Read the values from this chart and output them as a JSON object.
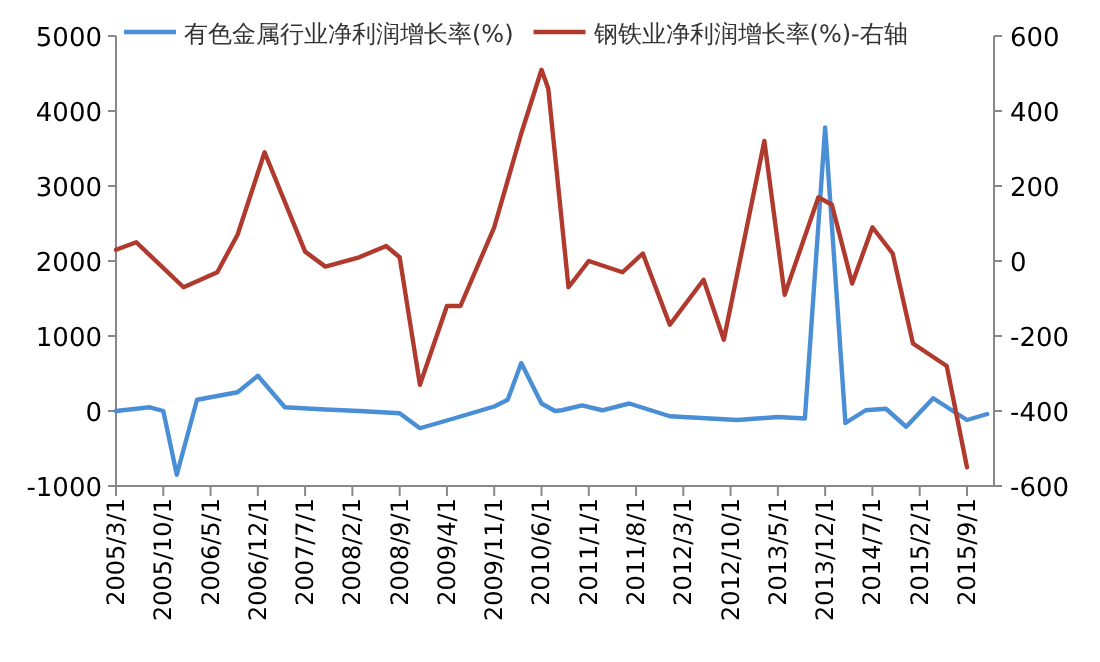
{
  "chart_data": {
    "type": "line",
    "legend": "top",
    "marker": "none",
    "line_style": "solid",
    "xlim": [
      "2005-03",
      "2016-01"
    ],
    "xticks": [
      {
        "value": "2005-03-01",
        "label": "2005/3/1"
      },
      {
        "value": "2005-10-01",
        "label": "2005/10/1"
      },
      {
        "value": "2006-05-01",
        "label": "2006/5/1"
      },
      {
        "value": "2006-12-01",
        "label": "2006/12/1"
      },
      {
        "value": "2007-07-01",
        "label": "2007/7/1"
      },
      {
        "value": "2008-02-01",
        "label": "2008/2/1"
      },
      {
        "value": "2008-09-01",
        "label": "2008/9/1"
      },
      {
        "value": "2009-04-01",
        "label": "2009/4/1"
      },
      {
        "value": "2009-11-01",
        "label": "2009/11/1"
      },
      {
        "value": "2010-06-01",
        "label": "2010/6/1"
      },
      {
        "value": "2011-01-01",
        "label": "2011/1/1"
      },
      {
        "value": "2011-08-01",
        "label": "2011/8/1"
      },
      {
        "value": "2012-03-01",
        "label": "2012/3/1"
      },
      {
        "value": "2012-10-01",
        "label": "2012/10/1"
      },
      {
        "value": "2013-05-01",
        "label": "2013/5/1"
      },
      {
        "value": "2013-12-01",
        "label": "2013/12/1"
      },
      {
        "value": "2014-07-01",
        "label": "2014/7/1"
      },
      {
        "value": "2015-02-01",
        "label": "2015/2/1"
      },
      {
        "value": "2015-09-01",
        "label": "2015/9/1"
      }
    ],
    "ylim": [
      -1000,
      5000
    ],
    "yticks": [
      -1000,
      0,
      1000,
      2000,
      3000,
      4000,
      5000
    ],
    "y2lim": [
      -600,
      600
    ],
    "y2ticks": [
      -600,
      -400,
      -200,
      0,
      200,
      400,
      600
    ],
    "series": [
      {
        "name": "有色金属行业净利润增长率(%)",
        "color": "#4a8fd6",
        "x": [
          "2005-03",
          "2005-08",
          "2005-10",
          "2005-12",
          "2006-03",
          "2006-09",
          "2006-12",
          "2007-04",
          "2007-10",
          "2008-03",
          "2008-09",
          "2008-12",
          "2009-05",
          "2009-11",
          "2010-01",
          "2010-03",
          "2010-06",
          "2010-08",
          "2010-09",
          "2010-12",
          "2011-03",
          "2011-07",
          "2012-01",
          "2012-11",
          "2013-05",
          "2013-09",
          "2013-12",
          "2014-03",
          "2014-06",
          "2014-09",
          "2014-12",
          "2015-04",
          "2015-09",
          "2015-12"
        ],
        "values": [
          0,
          50,
          0,
          -850,
          150,
          250,
          470,
          50,
          20,
          0,
          -30,
          -230,
          -100,
          60,
          150,
          640,
          100,
          0,
          10,
          75,
          10,
          100,
          -70,
          -120,
          -80,
          -100,
          3780,
          -160,
          10,
          30,
          -210,
          170,
          -120,
          -40
        ]
      },
      {
        "name": "钢铁业净利润增长率(%)-右轴",
        "color": "#b03a2e",
        "axis": "y2",
        "x": [
          "2005-03",
          "2005-06",
          "2006-01",
          "2006-06",
          "2006-09",
          "2007-01",
          "2007-07",
          "2007-10",
          "2008-03",
          "2008-07",
          "2008-09",
          "2008-12",
          "2009-04",
          "2009-06",
          "2009-11",
          "2010-03",
          "2010-06",
          "2010-07",
          "2010-10",
          "2011-01",
          "2011-06",
          "2011-09",
          "2012-01",
          "2012-06",
          "2012-09",
          "2013-03",
          "2013-06",
          "2013-11",
          "2014-01",
          "2014-04",
          "2014-07",
          "2014-10",
          "2015-01",
          "2015-06",
          "2015-09"
        ],
        "values": [
          30,
          50,
          -70,
          -30,
          70,
          290,
          25,
          -15,
          10,
          40,
          10,
          -330,
          -120,
          -120,
          90,
          340,
          510,
          460,
          -70,
          0,
          -30,
          20,
          -170,
          -50,
          -210,
          320,
          -90,
          170,
          150,
          -60,
          90,
          20,
          -220,
          -280,
          -550
        ]
      }
    ]
  }
}
